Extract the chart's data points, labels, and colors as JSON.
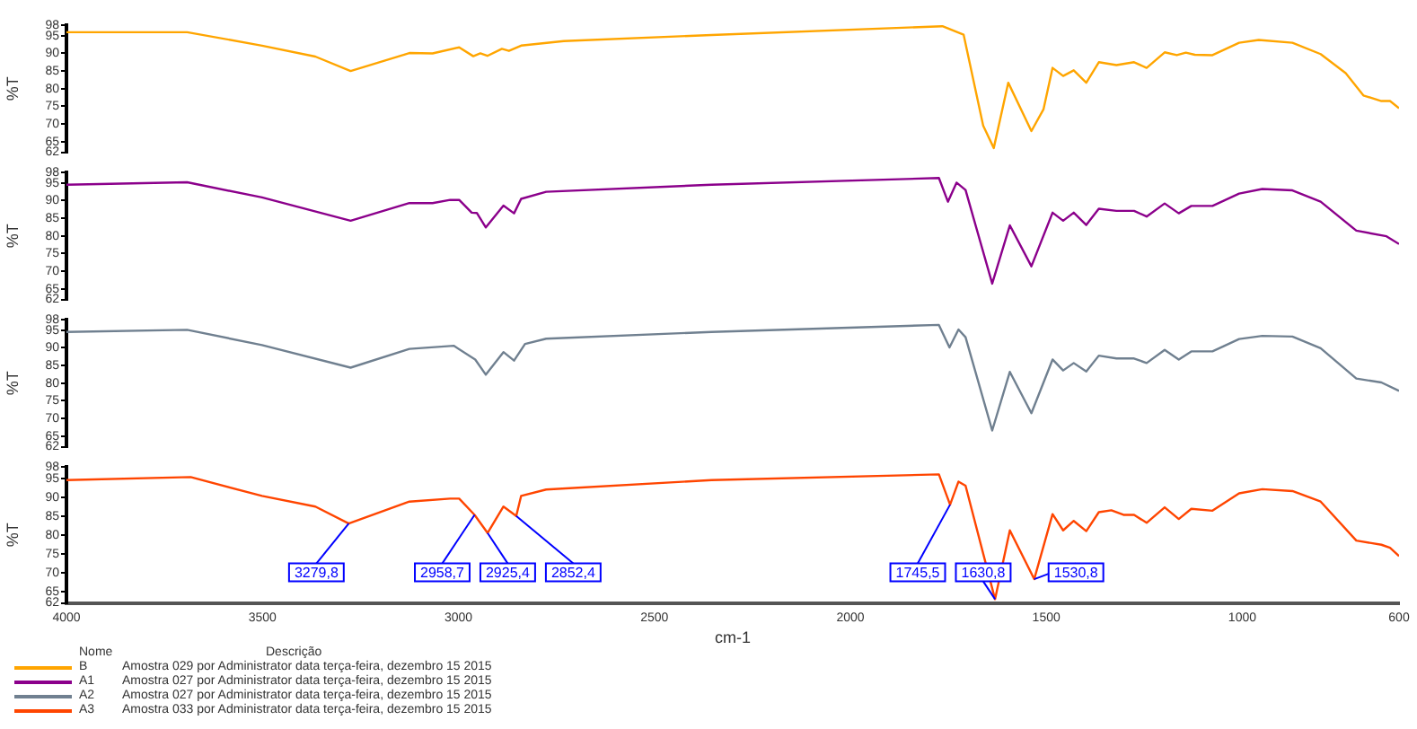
{
  "chart_data": [
    {
      "type": "line",
      "ylabel": "%T",
      "xlim": [
        4000,
        600
      ],
      "xticks": [
        4000,
        3500,
        3000,
        2500,
        2000,
        1500,
        1000,
        600
      ],
      "ylim": [
        62,
        98
      ],
      "yticks": [
        62,
        65,
        70,
        75,
        80,
        85,
        90,
        95,
        98
      ],
      "tick_labels": "y",
      "legend": "bottom",
      "marker": "none",
      "legend_title": "Nome",
      "annotations": [
        "Descrição",
        "Amostra 029 por Administrator data terça-feira, dezembro 15 2015"
      ],
      "series": [
        {
          "name": "B",
          "color": "#ffa500",
          "x": [
            4000,
            3692,
            3501,
            3365,
            3275,
            3125,
            3066,
            2998,
            2962,
            2944,
            2926,
            2889,
            2871,
            2840,
            2731,
            2354,
            1765,
            1711,
            1661,
            1634,
            1597,
            1538,
            1507,
            1484,
            1457,
            1430,
            1398,
            1366,
            1321,
            1276,
            1244,
            1198,
            1167,
            1144,
            1121,
            1076,
            1008,
            958,
            872,
            800,
            736,
            691,
            645,
            623,
            600
          ],
          "values": [
            96,
            96,
            92.2,
            89.1,
            85,
            90.1,
            90,
            91.7,
            89.2,
            90,
            89.3,
            91.3,
            90.7,
            92.2,
            93.5,
            95.2,
            97.7,
            95.3,
            69.5,
            63.2,
            81.7,
            68,
            74.2,
            85.9,
            83.6,
            85.2,
            81.7,
            87.5,
            86.7,
            87.5,
            85.9,
            90.3,
            89.5,
            90.2,
            89.6,
            89.5,
            93,
            93.8,
            93,
            89.8,
            84.4,
            78.1,
            76.5,
            76.5,
            74.5
          ]
        }
      ]
    },
    {
      "type": "line",
      "ylabel": "%T",
      "xlim": [
        4000,
        600
      ],
      "xticks": [
        4000,
        3500,
        3000,
        2500,
        2000,
        1500,
        1000,
        600
      ],
      "ylim": [
        62,
        98
      ],
      "yticks": [
        62,
        65,
        70,
        75,
        80,
        85,
        90,
        95,
        98
      ],
      "tick_labels": "y",
      "legend": "bottom",
      "marker": "none",
      "annotations": [
        "Amostra 027 por Administrator data terça-feira, dezembro 15 2015"
      ],
      "series": [
        {
          "name": "A1",
          "color": "#8b008b",
          "x": [
            4000,
            3692,
            3501,
            3275,
            3125,
            3066,
            3021,
            2998,
            2966,
            2953,
            2930,
            2885,
            2858,
            2840,
            2776,
            2354,
            1774,
            1751,
            1729,
            1706,
            1638,
            1593,
            1538,
            1484,
            1457,
            1430,
            1398,
            1366,
            1321,
            1276,
            1244,
            1198,
            1162,
            1130,
            1076,
            1008,
            949,
            872,
            800,
            709,
            632,
            600
          ],
          "values": [
            94.5,
            95.2,
            90.9,
            84.3,
            89.3,
            89.3,
            90.2,
            90.2,
            86.6,
            86.5,
            82.4,
            88.6,
            86.4,
            90.5,
            92.5,
            94.5,
            96.4,
            89.7,
            95.1,
            93,
            66.5,
            83,
            71.4,
            86.6,
            84.3,
            86.6,
            83.1,
            87.7,
            87.1,
            87.1,
            85.5,
            89.2,
            86.4,
            88.5,
            88.5,
            92,
            93.3,
            92.9,
            89.7,
            81.5,
            79.9,
            77.7
          ]
        }
      ]
    },
    {
      "type": "line",
      "ylabel": "%T",
      "xlim": [
        4000,
        600
      ],
      "xticks": [
        4000,
        3500,
        3000,
        2500,
        2000,
        1500,
        1000,
        600
      ],
      "ylim": [
        62,
        98
      ],
      "yticks": [
        62,
        65,
        70,
        75,
        80,
        85,
        90,
        95,
        98
      ],
      "tick_labels": "y",
      "legend": "bottom",
      "marker": "none",
      "annotations": [
        "Amostra 027 por Administrator data terça-feira, dezembro 15 2015"
      ],
      "series": [
        {
          "name": "A2",
          "color": "#708090",
          "x": [
            4000,
            3692,
            3501,
            3275,
            3125,
            3012,
            2957,
            2930,
            2885,
            2858,
            2830,
            2776,
            2354,
            1774,
            1747,
            1724,
            1706,
            1638,
            1593,
            1538,
            1484,
            1457,
            1430,
            1398,
            1366,
            1321,
            1276,
            1244,
            1198,
            1162,
            1130,
            1076,
            1008,
            949,
            872,
            800,
            709,
            645,
            600
          ],
          "values": [
            94.5,
            95.1,
            90.8,
            84.4,
            89.7,
            90.6,
            86.7,
            82.4,
            88.8,
            86.4,
            91.1,
            92.6,
            94.5,
            96.5,
            90.1,
            95.2,
            93,
            66.6,
            83.2,
            71.5,
            86.7,
            83.6,
            85.7,
            83.3,
            87.8,
            87,
            87,
            85.7,
            89.4,
            86.7,
            89,
            89,
            92.5,
            93.4,
            93.2,
            89.9,
            81.3,
            80.2,
            77.8
          ]
        }
      ]
    },
    {
      "type": "line",
      "ylabel": "%T",
      "xlabel": "cm-1",
      "xlim": [
        4000,
        600
      ],
      "xticks": [
        4000,
        3500,
        3000,
        2500,
        2000,
        1500,
        1000,
        600
      ],
      "ylim": [
        62,
        98
      ],
      "yticks": [
        62,
        65,
        70,
        75,
        80,
        85,
        90,
        95,
        98
      ],
      "legend": "bottom",
      "marker": "none",
      "annotations": [
        {
          "text": "3279,8",
          "x": 3279.8,
          "y": 83
        },
        {
          "text": "2958,7",
          "x": 2958.7,
          "y": 85.3
        },
        {
          "text": "2925,4",
          "x": 2925.4,
          "y": 80.5
        },
        {
          "text": "2852,4",
          "x": 2852.4,
          "y": 85
        },
        {
          "text": "1745,5",
          "x": 1745.5,
          "y": 88
        },
        {
          "text": "1630,8",
          "x": 1630.8,
          "y": 63
        },
        {
          "text": "1530,8",
          "x": 1530.8,
          "y": 68.3
        },
        "Amostra 033 por Administrator data terça-feira, dezembro 15 2015"
      ],
      "series": [
        {
          "name": "A3",
          "color": "#ff4500",
          "x": [
            4000,
            3683,
            3501,
            3365,
            3279.8,
            3125,
            3021,
            2998,
            2958.7,
            2925.4,
            2885,
            2852.4,
            2840,
            2776,
            2354,
            1774,
            1745.5,
            1724,
            1706,
            1630.8,
            1593,
            1530.8,
            1484,
            1457,
            1430,
            1398,
            1366,
            1334,
            1303,
            1276,
            1244,
            1198,
            1162,
            1130,
            1076,
            1008,
            949,
            872,
            800,
            709,
            645,
            623,
            600
          ],
          "values": [
            94.5,
            95.3,
            90.3,
            87.5,
            83,
            88.8,
            89.6,
            89.6,
            85.3,
            80.5,
            87.5,
            85,
            90.3,
            92,
            94.5,
            96,
            88,
            94.1,
            93,
            63,
            81.2,
            68.3,
            85.5,
            81.2,
            83.7,
            81,
            86,
            86.5,
            85.3,
            85.3,
            83.2,
            87.3,
            84.2,
            86.9,
            86.4,
            91,
            92.1,
            91.6,
            88.8,
            78.5,
            77.4,
            76.6,
            74.4
          ]
        }
      ]
    }
  ]
}
